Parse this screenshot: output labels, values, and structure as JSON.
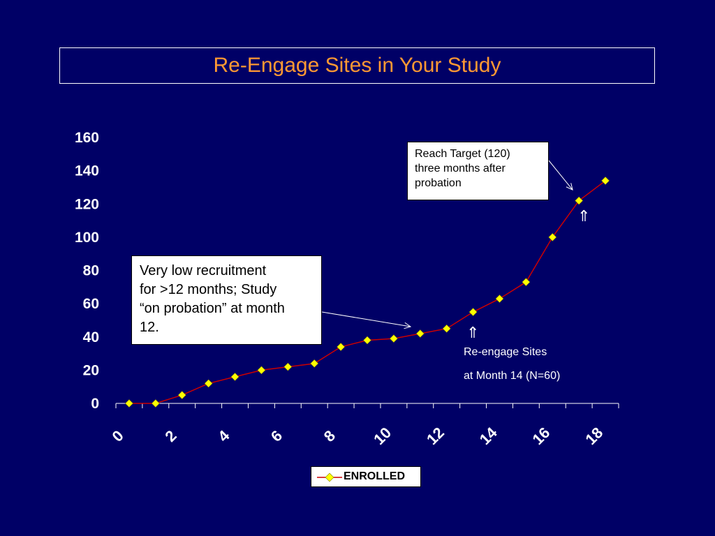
{
  "title": "Re-Engage Sites in Your Study",
  "colors": {
    "background": "#000066",
    "title": "#ff9933",
    "line": "#cc0000",
    "marker": "#ffff00",
    "axis": "#ffffff"
  },
  "annotations": {
    "target_line1": "Reach Target (120)",
    "target_line2": "three months after",
    "target_line3": "probation",
    "low_line1": "Very low recruitment",
    "low_line2": "for >12 months; Study",
    "low_line3": "“on probation” at month",
    "low_line4": "12.",
    "reengage_line1": "Re-engage Sites",
    "reengage_line2": "at Month 14 (N=60)",
    "up_arrow": "⇑"
  },
  "chart_data": {
    "type": "line",
    "title": "",
    "xlabel": "",
    "ylabel": "",
    "xlim": [
      0,
      19
    ],
    "ylim": [
      0,
      160
    ],
    "x_ticks": [
      "0",
      "2",
      "4",
      "6",
      "8",
      "10",
      "12",
      "14",
      "16",
      "18"
    ],
    "y_ticks": [
      "0",
      "20",
      "40",
      "60",
      "80",
      "100",
      "120",
      "140",
      "160"
    ],
    "grid": false,
    "legend_position": "bottom",
    "series": [
      {
        "name": "ENROLLED",
        "x": [
          0.5,
          1.5,
          2.5,
          3.5,
          4.5,
          5.5,
          6.5,
          7.5,
          8.5,
          9.5,
          10.5,
          11.5,
          12.5,
          13.5,
          14.5,
          15.5,
          16.5,
          17.5,
          18.5
        ],
        "values": [
          0,
          0,
          5,
          12,
          16,
          20,
          22,
          24,
          34,
          38,
          39,
          42,
          45,
          55,
          63,
          73,
          100,
          122,
          134
        ]
      }
    ]
  }
}
